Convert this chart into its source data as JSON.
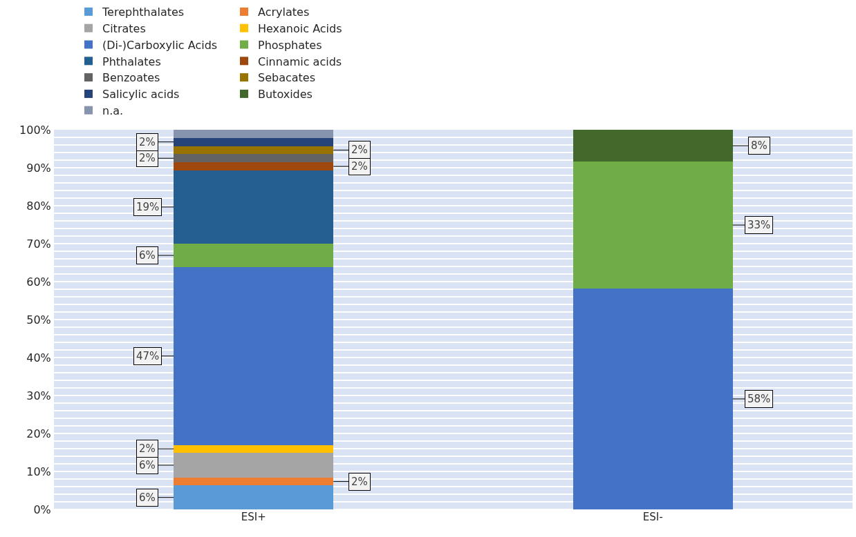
{
  "chart_data": {
    "type": "bar",
    "stacked": true,
    "categories": [
      "ESI+",
      "ESI-"
    ],
    "series": [
      {
        "name": "Terephthalates",
        "color": "#5b9bd5",
        "values": [
          6.3,
          null
        ],
        "value_labels": [
          "6%",
          null
        ]
      },
      {
        "name": "Acrylates",
        "color": "#ed7d31",
        "values": [
          2.1,
          null
        ],
        "value_labels": [
          "2%",
          null
        ]
      },
      {
        "name": "Citrates",
        "color": "#a5a5a5",
        "values": [
          6.5,
          null
        ],
        "value_labels": [
          "6%",
          null
        ]
      },
      {
        "name": "Hexanoic Acids",
        "color": "#ffc000",
        "values": [
          2.1,
          null
        ],
        "value_labels": [
          "2%",
          null
        ]
      },
      {
        "name": "(Di-)Carboxylic Acids",
        "color": "#4472c4",
        "values": [
          46.8,
          58.2
        ],
        "value_labels": [
          "47%",
          "58%"
        ]
      },
      {
        "name": "Phosphates",
        "color": "#70ad47",
        "values": [
          6.2,
          33.4
        ],
        "value_labels": [
          "6%",
          "33%"
        ]
      },
      {
        "name": "Phthalates",
        "color": "#255e91",
        "values": [
          19.3,
          null
        ],
        "value_labels": [
          "19%",
          null
        ]
      },
      {
        "name": "Cinnamic acids",
        "color": "#9e480e",
        "values": [
          2.1,
          null
        ],
        "value_labels": [
          "2%",
          null
        ]
      },
      {
        "name": "Benzoates",
        "color": "#636363",
        "values": [
          2.2,
          null
        ],
        "value_labels": [
          "2%",
          null
        ]
      },
      {
        "name": "Sebacates",
        "color": "#997300",
        "values": [
          2.1,
          null
        ],
        "value_labels": [
          "2%",
          null
        ]
      },
      {
        "name": "Salicylic acids",
        "color": "#264478",
        "values": [
          2.2,
          null
        ],
        "value_labels": [
          "2%",
          null
        ]
      },
      {
        "name": "Butoxides",
        "color": "#43682b",
        "values": [
          null,
          8.4
        ],
        "value_labels": [
          null,
          "8%"
        ]
      },
      {
        "name": "n.a.",
        "color": "#8794ad",
        "values": [
          2.1,
          null
        ],
        "value_labels": [
          null,
          null
        ]
      }
    ],
    "ylim": [
      0,
      100
    ],
    "yticks": [
      {
        "value": 0,
        "label": "0%"
      },
      {
        "value": 2,
        "label": null
      },
      {
        "value": 4,
        "label": null
      },
      {
        "value": 6,
        "label": null
      },
      {
        "value": 8,
        "label": null
      },
      {
        "value": 10,
        "label": "10%"
      },
      {
        "value": 12,
        "label": null
      },
      {
        "value": 14,
        "label": null
      },
      {
        "value": 16,
        "label": null
      },
      {
        "value": 18,
        "label": null
      },
      {
        "value": 20,
        "label": "20%"
      },
      {
        "value": 22,
        "label": null
      },
      {
        "value": 24,
        "label": null
      },
      {
        "value": 26,
        "label": null
      },
      {
        "value": 28,
        "label": null
      },
      {
        "value": 30,
        "label": "30%"
      },
      {
        "value": 32,
        "label": null
      },
      {
        "value": 34,
        "label": null
      },
      {
        "value": 36,
        "label": null
      },
      {
        "value": 38,
        "label": null
      },
      {
        "value": 40,
        "label": "40%"
      },
      {
        "value": 42,
        "label": null
      },
      {
        "value": 44,
        "label": null
      },
      {
        "value": 46,
        "label": null
      },
      {
        "value": 48,
        "label": null
      },
      {
        "value": 50,
        "label": "50%"
      },
      {
        "value": 52,
        "label": null
      },
      {
        "value": 54,
        "label": null
      },
      {
        "value": 56,
        "label": null
      },
      {
        "value": 58,
        "label": null
      },
      {
        "value": 60,
        "label": "60%"
      },
      {
        "value": 62,
        "label": null
      },
      {
        "value": 64,
        "label": null
      },
      {
        "value": 66,
        "label": null
      },
      {
        "value": 68,
        "label": null
      },
      {
        "value": 70,
        "label": "70%"
      },
      {
        "value": 72,
        "label": null
      },
      {
        "value": 74,
        "label": null
      },
      {
        "value": 76,
        "label": null
      },
      {
        "value": 78,
        "label": null
      },
      {
        "value": 80,
        "label": "80%"
      },
      {
        "value": 82,
        "label": null
      },
      {
        "value": 84,
        "label": null
      },
      {
        "value": 86,
        "label": null
      },
      {
        "value": 88,
        "label": null
      },
      {
        "value": 90,
        "label": "90%"
      },
      {
        "value": 92,
        "label": null
      },
      {
        "value": 94,
        "label": null
      },
      {
        "value": 96,
        "label": null
      },
      {
        "value": 98,
        "label": null
      },
      {
        "value": 100,
        "label": "100%"
      }
    ],
    "grid": "y",
    "legend": "top"
  }
}
